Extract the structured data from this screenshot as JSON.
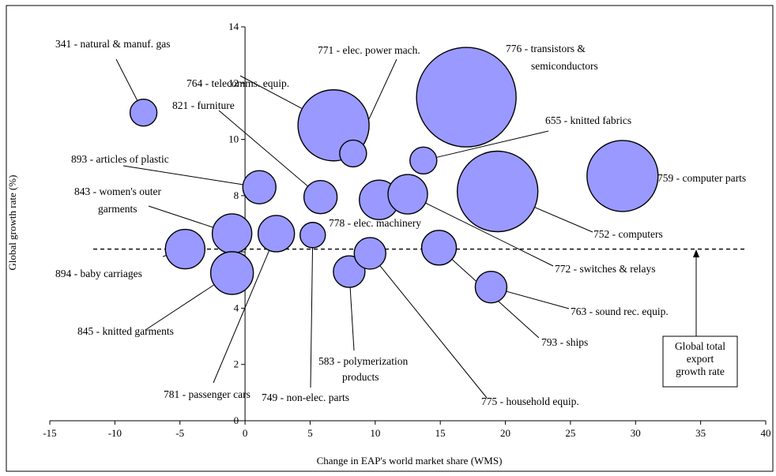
{
  "chart_data": {
    "type": "bubble",
    "title": "",
    "xlabel": "Change in EAP's world market share (WMS)",
    "ylabel": "Global growth rate (%)",
    "xlim": [
      -15,
      40
    ],
    "ylim": [
      0,
      14
    ],
    "xticks": [
      -15,
      -10,
      -5,
      0,
      5,
      10,
      15,
      20,
      25,
      30,
      35,
      40
    ],
    "yticks": [
      0,
      2,
      4,
      6,
      8,
      10,
      12,
      14
    ],
    "bubble_color": "#9999ff",
    "reference_line": {
      "y": 6.1,
      "style": "dashed"
    },
    "annotation": {
      "lines": [
        "Global total",
        "export",
        "growth rate"
      ]
    },
    "points": [
      {
        "label": "341 - natural & manuf. gas",
        "x": -7.8,
        "y": 10.95,
        "r": 17
      },
      {
        "label": "764 - telecomms. equip.",
        "x": 6.8,
        "y": 10.5,
        "r": 45
      },
      {
        "label": "771 - elec. power mach.",
        "x": 8.3,
        "y": 9.5,
        "r": 17
      },
      {
        "label": "776 - transistors & semiconductors",
        "x": 17.0,
        "y": 11.5,
        "r": 63
      },
      {
        "label": "821 - furniture",
        "x": 5.8,
        "y": 7.95,
        "r": 21
      },
      {
        "label": "655 - knitted fabrics",
        "x": 13.7,
        "y": 9.25,
        "r": 17
      },
      {
        "label": "893 - articles of plastic",
        "x": 1.1,
        "y": 8.3,
        "r": 21
      },
      {
        "label": "759 - computer parts",
        "x": 29.0,
        "y": 8.7,
        "r": 45
      },
      {
        "label": "843 - women's outer garments",
        "x": -1.0,
        "y": 6.65,
        "r": 25
      },
      {
        "label": "778 - elec. machinery",
        "x": 10.3,
        "y": 7.85,
        "r": 25
      },
      {
        "label": "772 - switches & relays",
        "x": 12.5,
        "y": 8.05,
        "r": 25
      },
      {
        "label": "752 - computers",
        "x": 19.4,
        "y": 8.15,
        "r": 51
      },
      {
        "label": "894 - baby carriages",
        "x": -4.6,
        "y": 6.1,
        "r": 25
      },
      {
        "label": "845 - knitted garments",
        "x": -1.0,
        "y": 5.25,
        "r": 27
      },
      {
        "label": "781 - passenger cars",
        "x": 2.4,
        "y": 6.65,
        "r": 23
      },
      {
        "label": "749 - non-elec. parts",
        "x": 5.2,
        "y": 6.6,
        "r": 16
      },
      {
        "label": "583 - polymerization products",
        "x": 8.0,
        "y": 5.3,
        "r": 20
      },
      {
        "label": "775 - household equip.",
        "x": 9.6,
        "y": 5.95,
        "r": 20
      },
      {
        "label": "793 - ships",
        "x": 14.9,
        "y": 6.15,
        "r": 22
      },
      {
        "label": "763 - sound rec. equip.",
        "x": 18.9,
        "y": 4.75,
        "r": 20
      }
    ]
  }
}
